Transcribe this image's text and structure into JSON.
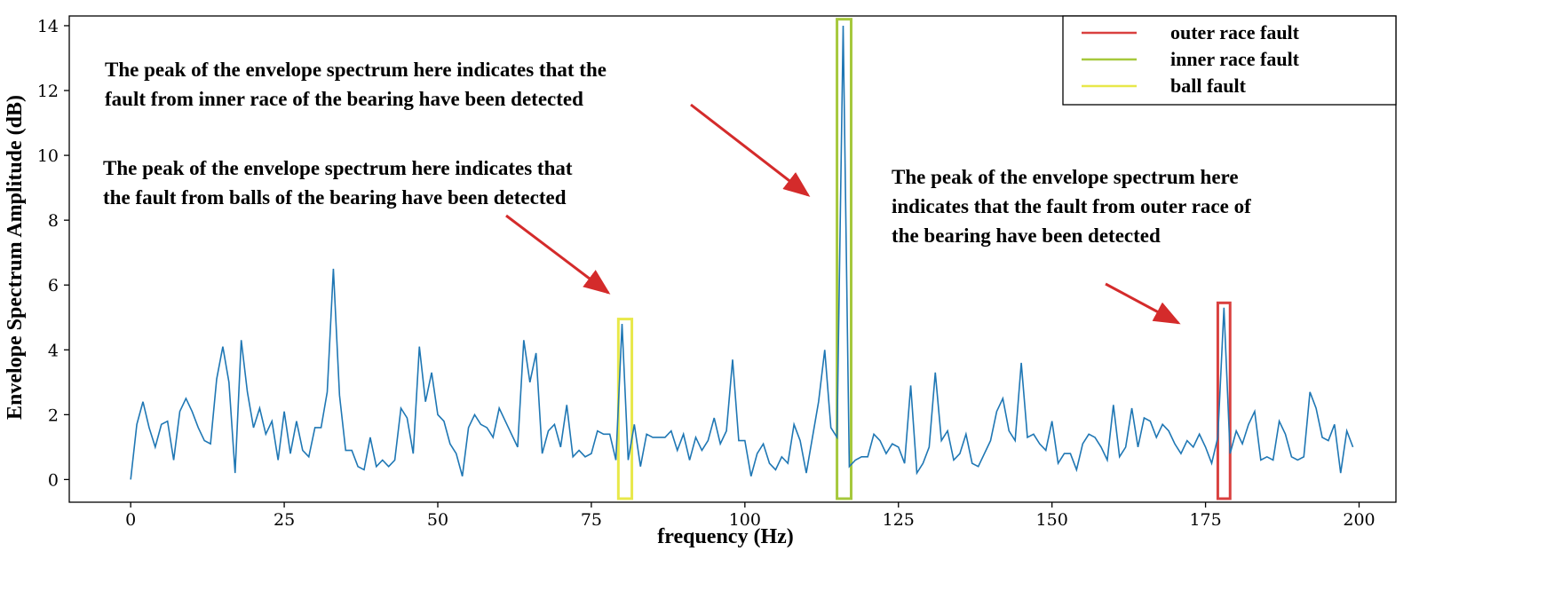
{
  "chart_data": {
    "type": "line",
    "title": "",
    "xlabel": "frequency (Hz)",
    "ylabel": "Envelope Spectrum Amplitude (dB)",
    "xlim": [
      -10,
      206
    ],
    "ylim": [
      -0.7,
      14.3
    ],
    "xticks": [
      0,
      25,
      50,
      75,
      100,
      125,
      150,
      175,
      200
    ],
    "yticks": [
      0,
      2,
      4,
      6,
      8,
      10,
      12,
      14
    ],
    "grid": false,
    "line_color": "#1f77b4",
    "series": [
      {
        "name": "envelope spectrum",
        "x": [
          0,
          1,
          2,
          3,
          4,
          5,
          6,
          7,
          8,
          9,
          10,
          11,
          12,
          13,
          14,
          15,
          16,
          17,
          18,
          19,
          20,
          21,
          22,
          23,
          24,
          25,
          26,
          27,
          28,
          29,
          30,
          31,
          32,
          33,
          34,
          35,
          36,
          37,
          38,
          39,
          40,
          41,
          42,
          43,
          44,
          45,
          46,
          47,
          48,
          49,
          50,
          51,
          52,
          53,
          54,
          55,
          56,
          57,
          58,
          59,
          60,
          61,
          62,
          63,
          64,
          65,
          66,
          67,
          68,
          69,
          70,
          71,
          72,
          73,
          74,
          75,
          76,
          77,
          78,
          79,
          80,
          81,
          82,
          83,
          84,
          85,
          86,
          87,
          88,
          89,
          90,
          91,
          92,
          93,
          94,
          95,
          96,
          97,
          98,
          99,
          100,
          101,
          102,
          103,
          104,
          105,
          106,
          107,
          108,
          109,
          110,
          111,
          112,
          113,
          114,
          115,
          116,
          117,
          118,
          119,
          120,
          121,
          122,
          123,
          124,
          125,
          126,
          127,
          128,
          129,
          130,
          131,
          132,
          133,
          134,
          135,
          136,
          137,
          138,
          139,
          140,
          141,
          142,
          143,
          144,
          145,
          146,
          147,
          148,
          149,
          150,
          151,
          152,
          153,
          154,
          155,
          156,
          157,
          158,
          159,
          160,
          161,
          162,
          163,
          164,
          165,
          166,
          167,
          168,
          169,
          170,
          171,
          172,
          173,
          174,
          175,
          176,
          177,
          178,
          179,
          180,
          181,
          182,
          183,
          184,
          185,
          186,
          187,
          188,
          189,
          190,
          191,
          192,
          193,
          194,
          195,
          196,
          197,
          198,
          199
        ],
        "y": [
          0.0,
          1.7,
          2.4,
          1.6,
          1.0,
          1.7,
          1.8,
          0.6,
          2.1,
          2.5,
          2.1,
          1.6,
          1.2,
          1.1,
          3.1,
          4.1,
          3.0,
          0.2,
          4.3,
          2.7,
          1.6,
          2.2,
          1.4,
          1.8,
          0.6,
          2.1,
          0.8,
          1.8,
          0.9,
          0.7,
          1.6,
          1.6,
          2.7,
          6.5,
          2.6,
          0.9,
          0.9,
          0.4,
          0.3,
          1.3,
          0.4,
          0.6,
          0.4,
          0.6,
          2.2,
          1.9,
          0.8,
          4.1,
          2.4,
          3.3,
          2.0,
          1.8,
          1.1,
          0.8,
          0.1,
          1.6,
          2.0,
          1.7,
          1.6,
          1.3,
          2.2,
          1.8,
          1.4,
          1.0,
          4.3,
          3.0,
          3.9,
          0.8,
          1.5,
          1.7,
          1.0,
          2.3,
          0.7,
          0.9,
          0.7,
          0.8,
          1.5,
          1.4,
          1.4,
          0.6,
          4.8,
          0.6,
          1.7,
          0.4,
          1.4,
          1.3,
          1.3,
          1.3,
          1.5,
          0.9,
          1.4,
          0.6,
          1.3,
          0.9,
          1.2,
          1.9,
          1.1,
          1.5,
          3.7,
          1.2,
          1.2,
          0.1,
          0.8,
          1.1,
          0.5,
          0.3,
          0.7,
          0.5,
          1.7,
          1.2,
          0.2,
          1.3,
          2.4,
          4.0,
          1.6,
          1.3,
          14.0,
          0.4,
          0.6,
          0.7,
          0.7,
          1.4,
          1.2,
          0.8,
          1.1,
          1.0,
          0.5,
          2.9,
          0.2,
          0.5,
          1.0,
          3.3,
          1.2,
          1.5,
          0.6,
          0.8,
          1.4,
          0.5,
          0.4,
          0.8,
          1.2,
          2.1,
          2.5,
          1.5,
          1.2,
          3.6,
          1.3,
          1.4,
          1.1,
          0.9,
          1.8,
          0.5,
          0.8,
          0.8,
          0.3,
          1.1,
          1.4,
          1.3,
          1.0,
          0.6,
          2.3,
          0.7,
          1.0,
          2.2,
          1.0,
          1.9,
          1.8,
          1.3,
          1.7,
          1.5,
          1.1,
          0.8,
          1.2,
          1.0,
          1.4,
          1.0,
          0.5,
          1.3,
          5.3,
          0.8,
          1.5,
          1.1,
          1.7,
          2.1,
          0.6,
          0.7,
          0.6,
          1.8,
          1.4,
          0.7,
          0.6,
          0.7,
          2.7,
          2.2,
          1.3,
          1.2,
          1.7,
          0.2,
          1.5,
          1.0
        ]
      }
    ],
    "highlights": [
      {
        "name": "ball-fault-box",
        "x0": 79.4,
        "x1": 81.6,
        "y0": -0.7,
        "y1": 4.95,
        "color": "#e8e84a"
      },
      {
        "name": "inner-race-fault-box",
        "x0": 115.0,
        "x1": 117.3,
        "y0": -0.7,
        "y1": 14.2,
        "color": "#a6c83c"
      },
      {
        "name": "outer-race-fault-box",
        "x0": 177.0,
        "x1": 179.0,
        "y0": -0.7,
        "y1": 5.45,
        "color": "#d9403f"
      }
    ],
    "legend": {
      "position": "top-right",
      "entries": [
        {
          "label": "outer race fault",
          "color": "#d9403f"
        },
        {
          "label": "inner race fault",
          "color": "#a6c83c"
        },
        {
          "label": "ball fault",
          "color": "#e8e84a"
        }
      ]
    },
    "annotations": [
      {
        "name": "annotation-inner-race",
        "lines": [
          "The peak of the envelope spectrum here indicates that the",
          "fault from inner race of the bearing have been detected"
        ]
      },
      {
        "name": "annotation-ball",
        "lines": [
          "The peak of the envelope spectrum here indicates that",
          "the fault from balls of the bearing have been detected"
        ]
      },
      {
        "name": "annotation-outer-race",
        "lines": [
          "The peak of the envelope spectrum here",
          "indicates that the fault from outer race of",
          "the bearing have been detected"
        ]
      }
    ],
    "arrow_color": "#d42b2b"
  }
}
